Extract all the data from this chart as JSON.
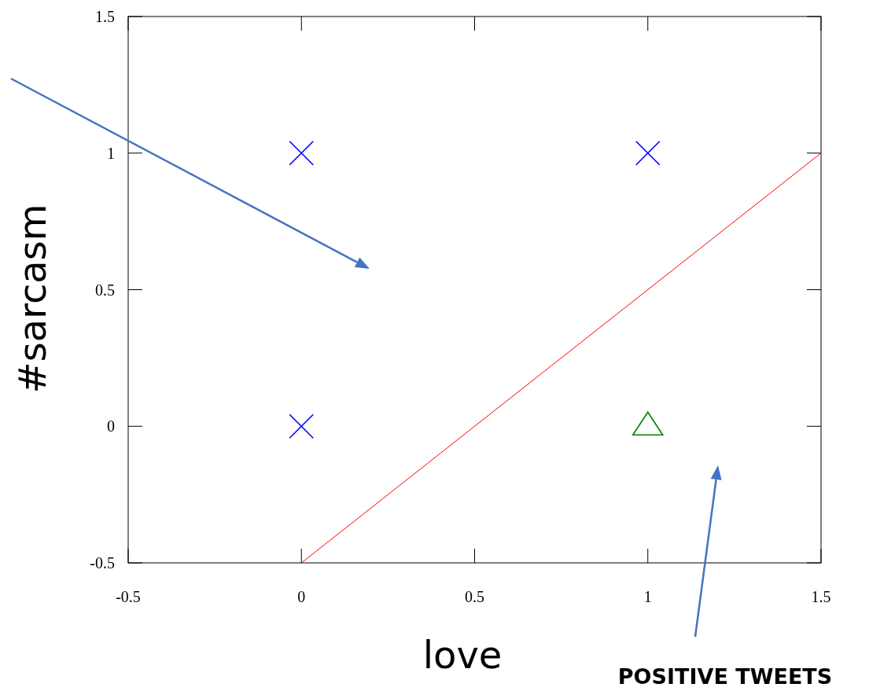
{
  "chart_data": {
    "type": "scatter",
    "xlabel": "love",
    "ylabel": "#sarcasm",
    "xlim": [
      -0.5,
      1.5
    ],
    "ylim": [
      -0.5,
      1.5
    ],
    "xticks": [
      -0.5,
      0,
      0.5,
      1,
      1.5
    ],
    "yticks": [
      -0.5,
      0,
      0.5,
      1,
      1.5
    ],
    "grid": false,
    "series": [
      {
        "type": "scatter",
        "marker": "cross",
        "color": "#0000ff",
        "x": [
          0,
          1,
          0
        ],
        "values": [
          1,
          1,
          0
        ]
      },
      {
        "type": "scatter",
        "marker": "triangle",
        "color": "#008000",
        "x": [
          1
        ],
        "values": [
          0
        ]
      },
      {
        "type": "line",
        "marker": "none",
        "color": "#ff0000",
        "x": [
          0,
          1.5
        ],
        "values": [
          -0.5,
          1
        ]
      }
    ],
    "annotations": [
      "POSITIVE TWEETS"
    ]
  }
}
